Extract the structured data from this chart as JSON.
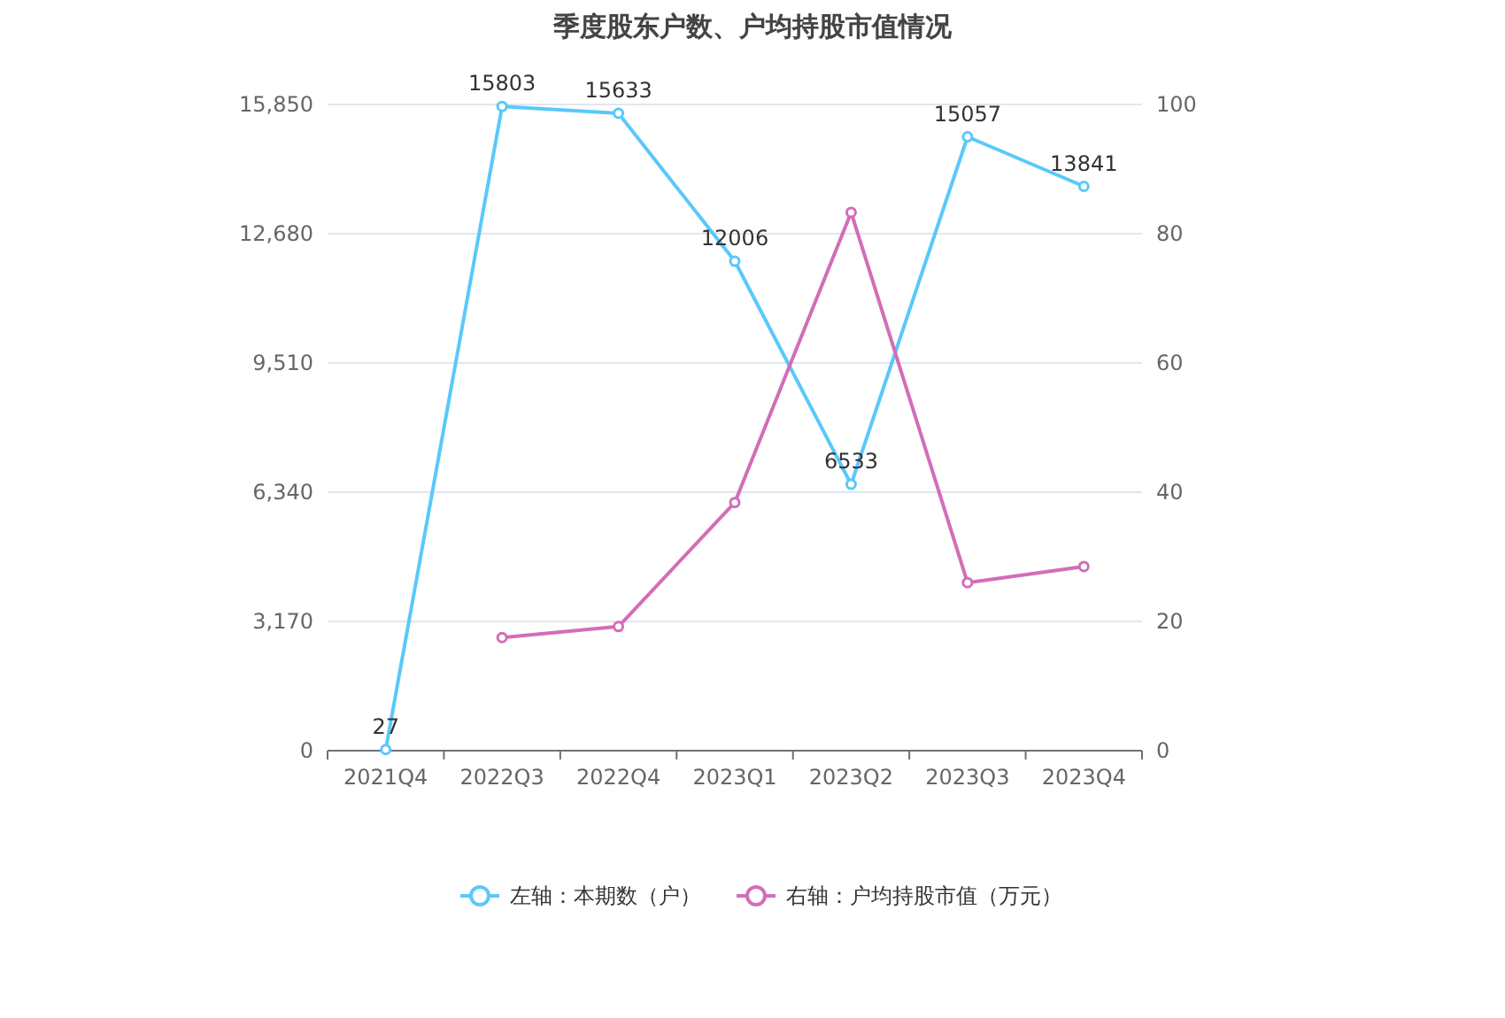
{
  "chart_data": {
    "type": "line",
    "title": "季度股东户数、户均持股市值情况",
    "categories": [
      "2021Q4",
      "2022Q3",
      "2022Q4",
      "2023Q1",
      "2023Q2",
      "2023Q3",
      "2023Q4"
    ],
    "series": [
      {
        "name": "左轴：本期数（户）",
        "color": "#5ac8fa",
        "values": [
          27,
          15803,
          15633,
          12006,
          6533,
          15057,
          13841
        ],
        "value_labels": [
          "27",
          "15803",
          "15633",
          "12006",
          "6533",
          "15057",
          "13841"
        ]
      },
      {
        "name": "右轴：户均持股市值（万元）",
        "color": "#d36db8",
        "axis": "y2",
        "values": [
          null,
          17.5,
          19.2,
          38.4,
          83.3,
          26.0,
          28.5
        ]
      }
    ],
    "ylim": [
      0,
      15850
    ],
    "yticks": [
      {
        "value": 0,
        "label": "0"
      },
      {
        "value": 3170,
        "label": "3,170"
      },
      {
        "value": 6340,
        "label": "6,340"
      },
      {
        "value": 9510,
        "label": "9,510"
      },
      {
        "value": 12680,
        "label": "12,680"
      },
      {
        "value": 15850,
        "label": "15,850"
      }
    ],
    "y2lim": [
      0,
      100
    ],
    "y2ticks": [
      0,
      20,
      40,
      60,
      80,
      100
    ],
    "grid": "y",
    "legend": "bottom",
    "marker": "circle"
  }
}
